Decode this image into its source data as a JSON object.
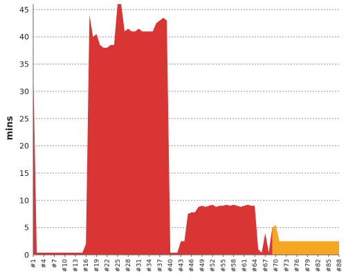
{
  "chart_data": {
    "type": "area",
    "ylabel": "mins",
    "xlabel": "",
    "ylim": [
      0,
      46
    ],
    "yticks": [
      0,
      5,
      10,
      15,
      20,
      25,
      30,
      35,
      40,
      45
    ],
    "grid": true,
    "x_tick_labels": [
      "#1",
      "#4",
      "#7",
      "#10",
      "#13",
      "#16",
      "#19",
      "#22",
      "#25",
      "#28",
      "#31",
      "#34",
      "#37",
      "#40",
      "#43",
      "#46",
      "#49",
      "#52",
      "#55",
      "#58",
      "#61",
      "#64",
      "#67",
      "#70",
      "#73",
      "#76",
      "#79",
      "#82",
      "#85",
      "#88"
    ],
    "x": [
      1,
      2,
      3,
      4,
      5,
      6,
      7,
      8,
      9,
      10,
      11,
      12,
      13,
      14,
      15,
      16,
      17,
      18,
      19,
      20,
      21,
      22,
      23,
      24,
      25,
      26,
      27,
      28,
      29,
      30,
      31,
      32,
      33,
      34,
      35,
      36,
      37,
      38,
      39,
      40,
      41,
      42,
      43,
      44,
      45,
      46,
      47,
      48,
      49,
      50,
      51,
      52,
      53,
      54,
      55,
      56,
      57,
      58,
      59,
      60,
      61,
      62,
      63,
      64,
      65,
      66,
      67,
      68,
      69,
      70,
      71,
      72,
      73,
      74,
      75,
      76,
      77,
      78,
      79,
      80,
      81,
      82,
      83,
      84,
      85,
      86,
      87,
      88
    ],
    "series": [
      {
        "color": "#d93535",
        "values": [
          35,
          0.4,
          0.4,
          0.4,
          0.4,
          0.4,
          0.4,
          0.4,
          0.4,
          0.4,
          0.4,
          0.4,
          0.4,
          0.4,
          0.4,
          2,
          44,
          40,
          40.5,
          38.5,
          38,
          38,
          38.5,
          38.5,
          48,
          48,
          41,
          41.5,
          41,
          41,
          41.5,
          41,
          41,
          41,
          41,
          42.5,
          43,
          43.5,
          43,
          0.4,
          0.4,
          0.4,
          2.5,
          2.5,
          7.5,
          7.8,
          7.8,
          8.8,
          9,
          8.8,
          9,
          9.2,
          8.8,
          9,
          9,
          9.2,
          9,
          9.2,
          9,
          8.8,
          9,
          9.2,
          9,
          9,
          1,
          0.4,
          4,
          0.4,
          5,
          null,
          null,
          null,
          null,
          null,
          null,
          null,
          null,
          null,
          null,
          null,
          null,
          null,
          null,
          null,
          null,
          null,
          null,
          null
        ]
      },
      {
        "color": "#f5a623",
        "values": [
          null,
          null,
          null,
          null,
          null,
          null,
          null,
          null,
          null,
          null,
          null,
          null,
          null,
          null,
          null,
          null,
          null,
          null,
          null,
          null,
          null,
          null,
          null,
          null,
          null,
          null,
          null,
          null,
          null,
          null,
          null,
          null,
          null,
          null,
          null,
          null,
          null,
          null,
          null,
          null,
          null,
          null,
          null,
          null,
          null,
          null,
          null,
          null,
          null,
          null,
          null,
          null,
          null,
          null,
          null,
          null,
          null,
          null,
          null,
          null,
          null,
          null,
          null,
          null,
          null,
          null,
          null,
          null,
          5,
          5.5,
          2.5,
          2.5,
          2.5,
          2.5,
          2.5,
          2.5,
          2.5,
          2.5,
          2.5,
          2.5,
          2.5,
          2.5,
          2.5,
          2.5,
          2.5,
          2.5,
          2.5,
          2.5
        ]
      }
    ]
  }
}
